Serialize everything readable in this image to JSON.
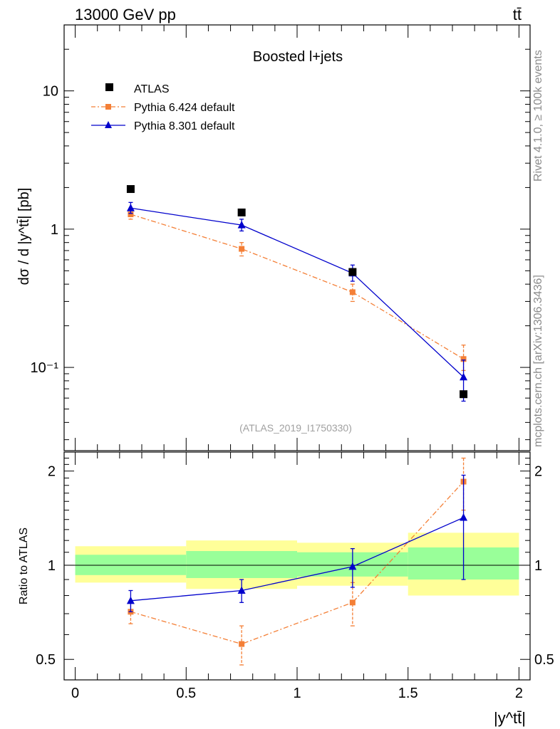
{
  "header": {
    "left": "13000 GeV pp",
    "right": "tt̄"
  },
  "side_labels": {
    "rivet": "Rivet 4.1.0, ≥ 100k events",
    "mcplots": "mcplots.cern.ch [arXiv:1306.3436]"
  },
  "chart_data": [
    {
      "type": "line",
      "title": "Boosted l+jets",
      "ylabel": "dσ / d |y^tt̄| [pb]",
      "yscale": "log",
      "ylim": [
        0.025,
        30
      ],
      "xlim": [
        -0.05,
        2.05
      ],
      "ytick_labels": [
        "10",
        "1",
        "10⁻¹"
      ],
      "watermark": "(ATLAS_2019_I1750330)",
      "legend": [
        "ATLAS",
        "Pythia 6.424 default",
        "Pythia 8.301 default"
      ],
      "x": [
        0.25,
        0.75,
        1.25,
        1.75
      ],
      "series": [
        {
          "name": "ATLAS",
          "color": "#000000",
          "values": [
            1.95,
            1.32,
            0.49,
            0.064
          ]
        },
        {
          "name": "Pythia 6.424 default",
          "color": "#f47f36",
          "values": [
            1.28,
            0.72,
            0.35,
            0.115
          ],
          "err_lo": [
            0.1,
            0.08,
            0.05,
            0.02
          ],
          "err_hi": [
            0.1,
            0.08,
            0.05,
            0.03
          ]
        },
        {
          "name": "Pythia 8.301 default",
          "color": "#0000cc",
          "values": [
            1.42,
            1.07,
            0.48,
            0.085
          ],
          "err_lo": [
            0.12,
            0.1,
            0.06,
            0.028
          ],
          "err_hi": [
            0.14,
            0.11,
            0.07,
            0.028
          ]
        }
      ]
    },
    {
      "type": "line",
      "ylabel": "Ratio to ATLAS",
      "xlabel": "|y^tt̄|",
      "yscale": "log",
      "ylim": [
        0.43,
        2.3
      ],
      "xlim": [
        -0.05,
        2.05
      ],
      "ytick_labels": [
        "2",
        "1",
        "0.5"
      ],
      "xtick_labels": [
        "0",
        "0.5",
        "1",
        "1.5",
        "2"
      ],
      "bins": [
        [
          0,
          0.5
        ],
        [
          0.5,
          1
        ],
        [
          1,
          1.5
        ],
        [
          1.5,
          2
        ]
      ],
      "band_yellow": [
        [
          0.88,
          1.15
        ],
        [
          0.84,
          1.2
        ],
        [
          0.86,
          1.18
        ],
        [
          0.8,
          1.27
        ]
      ],
      "band_green": [
        [
          0.93,
          1.08
        ],
        [
          0.91,
          1.11
        ],
        [
          0.92,
          1.1
        ],
        [
          0.9,
          1.14
        ]
      ],
      "x": [
        0.25,
        0.75,
        1.25,
        1.75
      ],
      "series": [
        {
          "name": "Pythia 6.424 default",
          "color": "#f47f36",
          "values": [
            0.71,
            0.56,
            0.76,
            1.85
          ],
          "err_lo": [
            0.06,
            0.08,
            0.12,
            0.35
          ],
          "err_hi": [
            0.06,
            0.08,
            0.12,
            0.35
          ]
        },
        {
          "name": "Pythia 8.301 default",
          "color": "#0000cc",
          "values": [
            0.77,
            0.83,
            0.99,
            1.42
          ],
          "err_lo": [
            0.06,
            0.07,
            0.14,
            0.52
          ],
          "err_hi": [
            0.06,
            0.07,
            0.14,
            0.52
          ]
        }
      ]
    }
  ]
}
